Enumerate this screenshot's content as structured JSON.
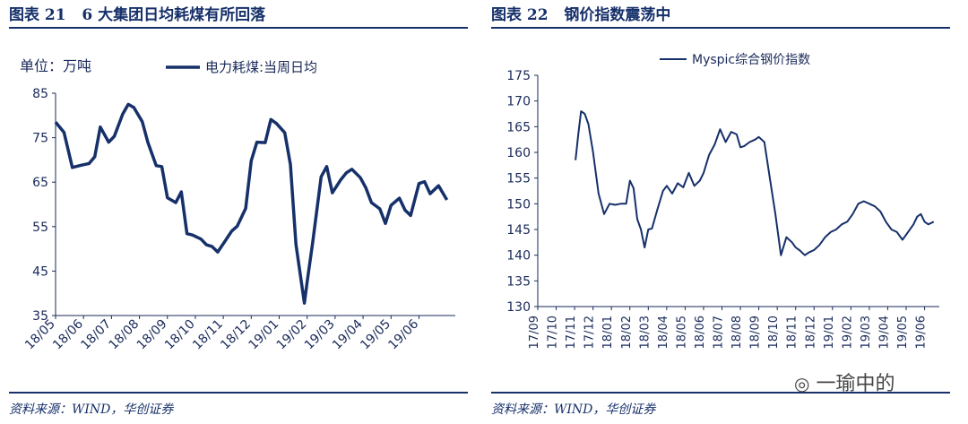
{
  "left": {
    "title": "图表 21   6 大集团日均耗煤有所回落",
    "unit_label": "单位：万吨",
    "source": "资料来源：WIND，华创证券"
  },
  "right": {
    "title": "图表 22   钢价指数震荡中",
    "source": "资料来源：WIND，华创证券"
  },
  "watermark": "一瑜中的",
  "chart_data": [
    {
      "type": "line",
      "ylim": [
        35,
        85
      ],
      "yticks": [
        35,
        45,
        55,
        65,
        75,
        85
      ],
      "xticks": [
        "18/05",
        "18/06",
        "18/07",
        "18/08",
        "18/09",
        "18/10",
        "18/11",
        "18/12",
        "19/01",
        "19/02",
        "19/03",
        "19/04",
        "19/05",
        "19/06"
      ],
      "xlim": [
        0,
        14.3
      ],
      "series": [
        {
          "name": "电力耗煤:当周日均",
          "color": "#16306a",
          "x": [
            0,
            0.3,
            0.6,
            0.9,
            1.2,
            1.4,
            1.6,
            1.9,
            2.1,
            2.4,
            2.6,
            2.8,
            3.1,
            3.3,
            3.6,
            3.8,
            4.0,
            4.3,
            4.5,
            4.7,
            4.9,
            5.2,
            5.4,
            5.6,
            5.8,
            6.1,
            6.3,
            6.5,
            6.8,
            7.0,
            7.2,
            7.5,
            7.7,
            7.9,
            8.2,
            8.4,
            8.6,
            8.9,
            9.0,
            9.2,
            9.5,
            9.7,
            9.9,
            10.2,
            10.4,
            10.6,
            10.9,
            11.1,
            11.3,
            11.6,
            11.8,
            12.0,
            12.3,
            12.5,
            12.7,
            13.0,
            13.2,
            13.4,
            13.7,
            14.0
          ],
          "values": [
            78.5,
            76.2,
            68.3,
            68.8,
            69.2,
            70.7,
            77.4,
            74.0,
            75.3,
            80.3,
            82.5,
            81.8,
            78.6,
            74.0,
            68.7,
            68.5,
            61.5,
            60.4,
            62.8,
            53.4,
            53.1,
            52.2,
            50.9,
            50.5,
            49.3,
            52.1,
            54.0,
            55.1,
            59.1,
            69.8,
            74.0,
            73.9,
            79.1,
            78.2,
            76.1,
            69.0,
            51.0,
            37.8,
            42.6,
            51.5,
            66.2,
            68.5,
            62.6,
            65.5,
            67.1,
            67.9,
            66.0,
            63.7,
            60.4,
            59.0,
            55.7,
            59.8,
            61.4,
            58.7,
            57.5,
            64.7,
            65.1,
            62.4,
            64.2,
            61.0
          ]
        }
      ]
    },
    {
      "type": "line",
      "ylim": [
        130,
        175
      ],
      "yticks": [
        130,
        135,
        140,
        145,
        150,
        155,
        160,
        165,
        170,
        175
      ],
      "xticks": [
        "17/09",
        "17/10",
        "17/11",
        "17/12",
        "18/01",
        "18/02",
        "18/03",
        "18/04",
        "18/05",
        "18/06",
        "18/07",
        "18/08",
        "18/09",
        "18/10",
        "18/11",
        "18/12",
        "19/01",
        "19/02",
        "19/03",
        "19/04",
        "19/05",
        "19/06"
      ],
      "xlim": [
        0,
        21.8
      ],
      "series": [
        {
          "name": "Myspic综合钢价指数",
          "color": "#16306a",
          "x": [
            2.05,
            2.2,
            2.35,
            2.55,
            2.75,
            3.0,
            3.3,
            3.6,
            3.9,
            4.2,
            4.5,
            4.8,
            5.0,
            5.2,
            5.4,
            5.6,
            5.8,
            6.0,
            6.2,
            6.5,
            6.8,
            7.0,
            7.3,
            7.6,
            7.9,
            8.2,
            8.5,
            8.8,
            9.0,
            9.3,
            9.6,
            9.9,
            10.2,
            10.5,
            10.8,
            11.0,
            11.2,
            11.5,
            11.8,
            12.0,
            12.3,
            12.6,
            12.9,
            13.2,
            13.5,
            13.8,
            14.0,
            14.2,
            14.35,
            14.5,
            14.7,
            15.0,
            15.3,
            15.6,
            15.9,
            16.2,
            16.5,
            16.8,
            17.1,
            17.4,
            17.7,
            18.0,
            18.3,
            18.6,
            18.9,
            19.2,
            19.5,
            19.8,
            20.1,
            20.4,
            20.6,
            20.8,
            21.0,
            21.2,
            21.5
          ],
          "values": [
            158.5,
            163.5,
            168.0,
            167.5,
            165.5,
            160.0,
            152.0,
            148.0,
            150.0,
            149.8,
            150.0,
            150.0,
            154.5,
            153.0,
            147.0,
            145.0,
            141.5,
            145.0,
            145.2,
            149.0,
            152.5,
            153.5,
            152.0,
            154.0,
            153.2,
            156.0,
            153.5,
            154.5,
            156.0,
            159.5,
            161.5,
            164.5,
            162.0,
            164.0,
            163.5,
            161.0,
            161.2,
            162.0,
            162.5,
            163.0,
            162.0,
            155.0,
            148.0,
            140.0,
            143.5,
            142.5,
            141.5,
            141.0,
            140.5,
            140.0,
            140.5,
            141.0,
            142.0,
            143.5,
            144.5,
            145.0,
            146.0,
            146.5,
            148.0,
            150.0,
            150.5,
            150.0,
            149.5,
            148.5,
            146.5,
            145.0,
            144.5,
            143.0,
            144.5,
            146.0,
            147.5,
            148.0,
            146.5,
            146.0,
            146.5
          ]
        }
      ]
    }
  ]
}
